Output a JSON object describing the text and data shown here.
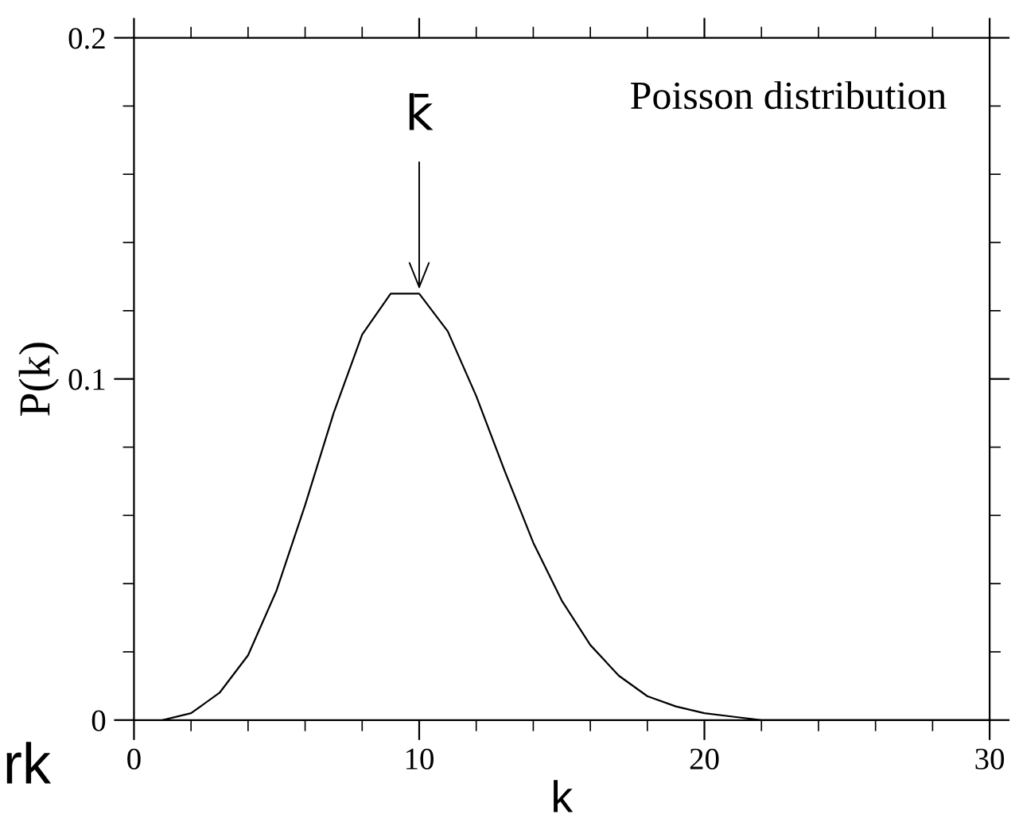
{
  "chart_data": {
    "type": "line",
    "ylabel": "P(k)",
    "xlabel": "k",
    "x": [
      1,
      2,
      3,
      4,
      5,
      6,
      7,
      8,
      9,
      10,
      11,
      12,
      13,
      14,
      15,
      16,
      17,
      18,
      19,
      20,
      21,
      22,
      23,
      24,
      25,
      26,
      27,
      28,
      29,
      30
    ],
    "values": [
      0.0,
      0.002,
      0.008,
      0.019,
      0.038,
      0.063,
      0.09,
      0.113,
      0.125,
      0.125,
      0.114,
      0.095,
      0.073,
      0.052,
      0.035,
      0.022,
      0.013,
      0.007,
      0.004,
      0.002,
      0.001,
      0.0,
      0.0,
      0.0,
      0.0,
      0.0,
      0.0,
      0.0,
      0.0,
      0.0
    ],
    "color": "#000000",
    "xlim": [
      0,
      30
    ],
    "xticks": [
      0,
      {
        "value": 2,
        "label": null
      },
      {
        "value": 4,
        "label": null
      },
      {
        "value": 6,
        "label": null
      },
      {
        "value": 8,
        "label": null
      },
      10,
      {
        "value": 12,
        "label": null
      },
      {
        "value": 14,
        "label": null
      },
      {
        "value": 16,
        "label": null
      },
      {
        "value": 18,
        "label": null
      },
      20,
      {
        "value": 22,
        "label": null
      },
      {
        "value": 24,
        "label": null
      },
      {
        "value": 26,
        "label": null
      },
      {
        "value": 28,
        "label": null
      },
      30
    ],
    "ylim": [
      0,
      0.2
    ],
    "yticks": [
      0,
      {
        "value": 0.02,
        "label": null
      },
      {
        "value": 0.04,
        "label": null
      },
      {
        "value": 0.06,
        "label": null
      },
      {
        "value": 0.08,
        "label": null
      },
      0.1,
      {
        "value": 0.12,
        "label": null
      },
      {
        "value": 0.14,
        "label": null
      },
      {
        "value": 0.16,
        "label": null
      },
      {
        "value": 0.18,
        "label": null
      },
      0.2
    ],
    "grid": false,
    "legend": false,
    "marker": "none",
    "line_style": "solid",
    "annotations": [
      {
        "text": "k̄",
        "x": 10,
        "y": 0.125
      },
      "Poisson distribution",
      "rk"
    ]
  }
}
